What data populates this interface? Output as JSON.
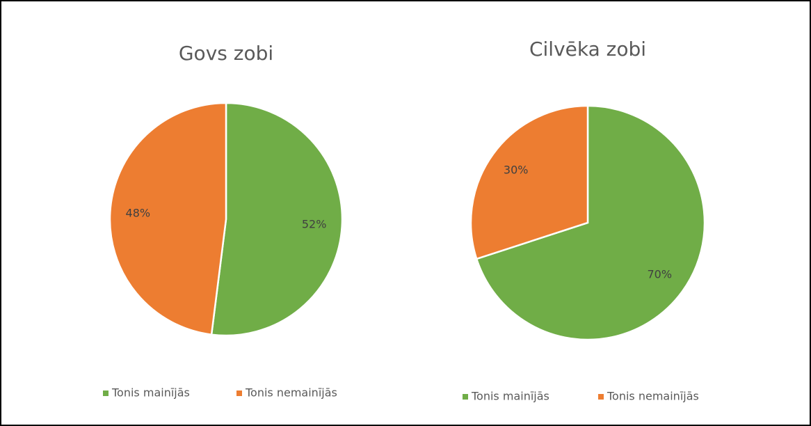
{
  "chart_data": [
    {
      "type": "pie",
      "title": "Govs zobi",
      "categories": [
        "Tonis mainījās",
        "Tonis nemainījās"
      ],
      "values": [
        52,
        48
      ],
      "value_labels": [
        "52%",
        "48%"
      ],
      "colors": [
        "#70ad47",
        "#ed7d31"
      ],
      "legend": "bottom"
    },
    {
      "type": "pie",
      "title": "Cilvēka zobi",
      "categories": [
        "Tonis mainījās",
        "Tonis nemainījās"
      ],
      "values": [
        70,
        30
      ],
      "value_labels": [
        "70%",
        "30%"
      ],
      "colors": [
        "#70ad47",
        "#ed7d31"
      ],
      "legend": "bottom"
    }
  ]
}
